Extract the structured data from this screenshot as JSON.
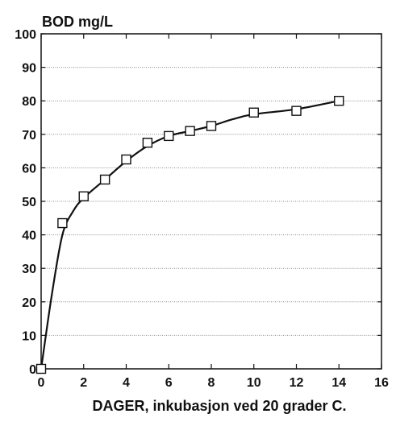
{
  "chart_data": {
    "type": "line",
    "title": "",
    "ylabel": "BOD mg/L",
    "xlabel": "DAGER, inkubasjon ved 20 grader C.",
    "xlim": [
      0,
      16
    ],
    "ylim": [
      0,
      100
    ],
    "x_ticks": [
      0,
      2,
      4,
      6,
      8,
      10,
      12,
      14,
      16
    ],
    "y_ticks": [
      0,
      10,
      20,
      30,
      40,
      50,
      60,
      70,
      80,
      90,
      100
    ],
    "grid": true,
    "series": [
      {
        "marker": "square",
        "points": [
          {
            "x": 0,
            "y": 0
          },
          {
            "x": 1,
            "y": 43.5
          },
          {
            "x": 2,
            "y": 51.5
          },
          {
            "x": 3,
            "y": 56.5
          },
          {
            "x": 4,
            "y": 62.5
          },
          {
            "x": 5,
            "y": 67.5
          },
          {
            "x": 6,
            "y": 69.5
          },
          {
            "x": 7,
            "y": 71
          },
          {
            "x": 8,
            "y": 72.5
          },
          {
            "x": 10,
            "y": 76.5
          },
          {
            "x": 12,
            "y": 77
          },
          {
            "x": 14,
            "y": 80
          }
        ]
      }
    ],
    "fit_curve": [
      {
        "x": 0,
        "y": 0
      },
      {
        "x": 0.5,
        "y": 22
      },
      {
        "x": 1,
        "y": 40
      },
      {
        "x": 1.5,
        "y": 47
      },
      {
        "x": 2,
        "y": 51
      },
      {
        "x": 3,
        "y": 56.5
      },
      {
        "x": 4,
        "y": 62
      },
      {
        "x": 5,
        "y": 66.5
      },
      {
        "x": 6,
        "y": 69.5
      },
      {
        "x": 7,
        "y": 71
      },
      {
        "x": 8,
        "y": 72.5
      },
      {
        "x": 9,
        "y": 74.5
      },
      {
        "x": 10,
        "y": 76
      },
      {
        "x": 12,
        "y": 77.5
      },
      {
        "x": 14,
        "y": 80
      }
    ],
    "colors": {
      "line": "#111111",
      "grid": "#8a8a8a",
      "marker_fill": "#ffffff"
    }
  }
}
